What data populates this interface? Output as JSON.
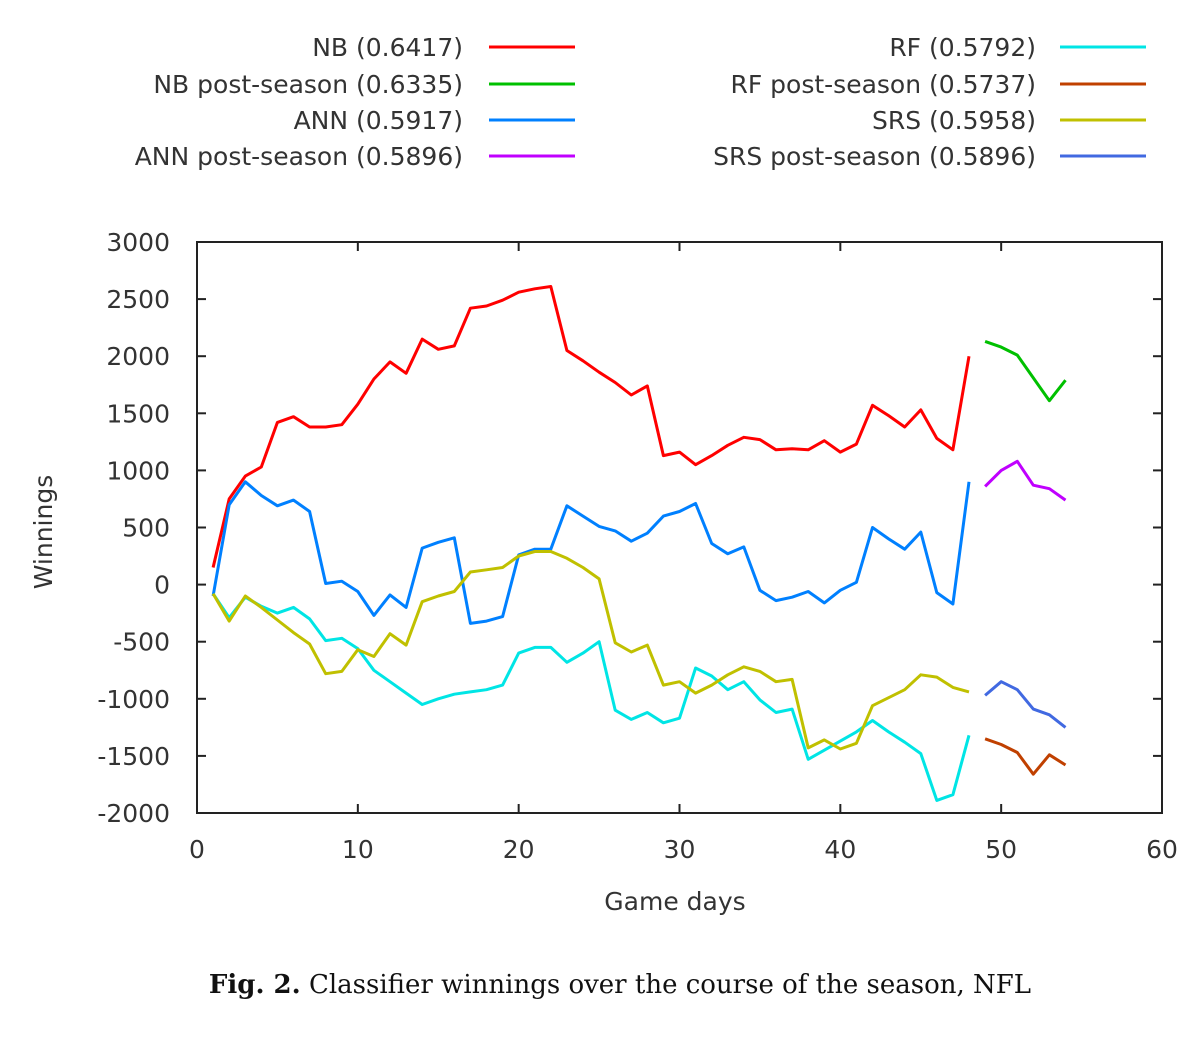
{
  "chart_data": {
    "type": "line",
    "xlabel": "Game days",
    "ylabel": "Winnings",
    "xlim": [
      0,
      60
    ],
    "ylim": [
      -2000,
      3000
    ],
    "xticks": [
      0,
      10,
      20,
      30,
      40,
      50,
      60
    ],
    "yticks": [
      3000,
      2500,
      2000,
      1500,
      1000,
      500,
      0,
      -500,
      -1000,
      -1500,
      -2000
    ],
    "legend_placement": "top (two columns)",
    "series": [
      {
        "name": "NB (0.6417)",
        "color": "#ff0000",
        "column": 0,
        "x_start": 1,
        "values": [
          150,
          750,
          950,
          1030,
          1420,
          1470,
          1380,
          1380,
          1400,
          1580,
          1800,
          1950,
          1850,
          2150,
          2060,
          2090,
          2420,
          2440,
          2490,
          2560,
          2590,
          2610,
          2050,
          1960,
          1860,
          1770,
          1660,
          1740,
          1130,
          1160,
          1050,
          1130,
          1220,
          1290,
          1270,
          1180,
          1190,
          1180,
          1260,
          1160,
          1230,
          1570,
          1480,
          1380,
          1530,
          1280,
          1180,
          2000
        ]
      },
      {
        "name": "NB post-season (0.6335)",
        "color": "#00c000",
        "column": 0,
        "x_start": 49,
        "values": [
          2130,
          2080,
          2010,
          1810,
          1610,
          1790
        ]
      },
      {
        "name": "ANN (0.5917)",
        "color": "#0080ff",
        "column": 0,
        "x_start": 1,
        "values": [
          -100,
          700,
          900,
          780,
          690,
          740,
          640,
          10,
          30,
          -60,
          -270,
          -90,
          -200,
          320,
          370,
          410,
          -340,
          -320,
          -280,
          260,
          310,
          310,
          690,
          600,
          510,
          470,
          380,
          450,
          600,
          640,
          710,
          360,
          270,
          330,
          -50,
          -140,
          -110,
          -60,
          -160,
          -50,
          20,
          500,
          400,
          310,
          460,
          -70,
          -170,
          900
        ]
      },
      {
        "name": "ANN post-season (0.5896)",
        "color": "#c000ff",
        "column": 0,
        "x_start": 49,
        "values": [
          860,
          1000,
          1080,
          870,
          840,
          740
        ]
      },
      {
        "name": "RF (0.5792)",
        "color": "#00e5e5",
        "column": 1,
        "x_start": 1,
        "values": [
          -80,
          -290,
          -110,
          -190,
          -250,
          -200,
          -300,
          -490,
          -470,
          -560,
          -750,
          -850,
          -950,
          -1050,
          -1000,
          -960,
          -940,
          -920,
          -880,
          -600,
          -550,
          -550,
          -680,
          -600,
          -500,
          -1100,
          -1180,
          -1120,
          -1210,
          -1170,
          -730,
          -800,
          -920,
          -850,
          -1010,
          -1120,
          -1090,
          -1530,
          -1450,
          -1370,
          -1290,
          -1190,
          -1290,
          -1380,
          -1480,
          -1890,
          -1840,
          -1320
        ]
      },
      {
        "name": "RF post-season (0.5737)",
        "color": "#c04000",
        "column": 1,
        "x_start": 49,
        "values": [
          -1350,
          -1400,
          -1470,
          -1660,
          -1490,
          -1580
        ]
      },
      {
        "name": "SRS (0.5958)",
        "color": "#c0c000",
        "column": 1,
        "x_start": 1,
        "values": [
          -80,
          -320,
          -100,
          -200,
          -310,
          -420,
          -520,
          -780,
          -760,
          -570,
          -630,
          -430,
          -530,
          -150,
          -100,
          -60,
          110,
          130,
          150,
          250,
          290,
          290,
          230,
          150,
          50,
          -510,
          -590,
          -530,
          -880,
          -850,
          -950,
          -880,
          -790,
          -720,
          -760,
          -850,
          -830,
          -1430,
          -1360,
          -1440,
          -1390,
          -1060,
          -990,
          -920,
          -790,
          -810,
          -900,
          -940
        ]
      },
      {
        "name": "SRS post-season (0.5896)",
        "color": "#4169e1",
        "column": 1,
        "x_start": 49,
        "values": [
          -970,
          -850,
          -920,
          -1090,
          -1140,
          -1250
        ]
      }
    ]
  },
  "caption": {
    "label": "Fig. 2.",
    "text": " Classifier winnings over the course of the season, NFL"
  }
}
